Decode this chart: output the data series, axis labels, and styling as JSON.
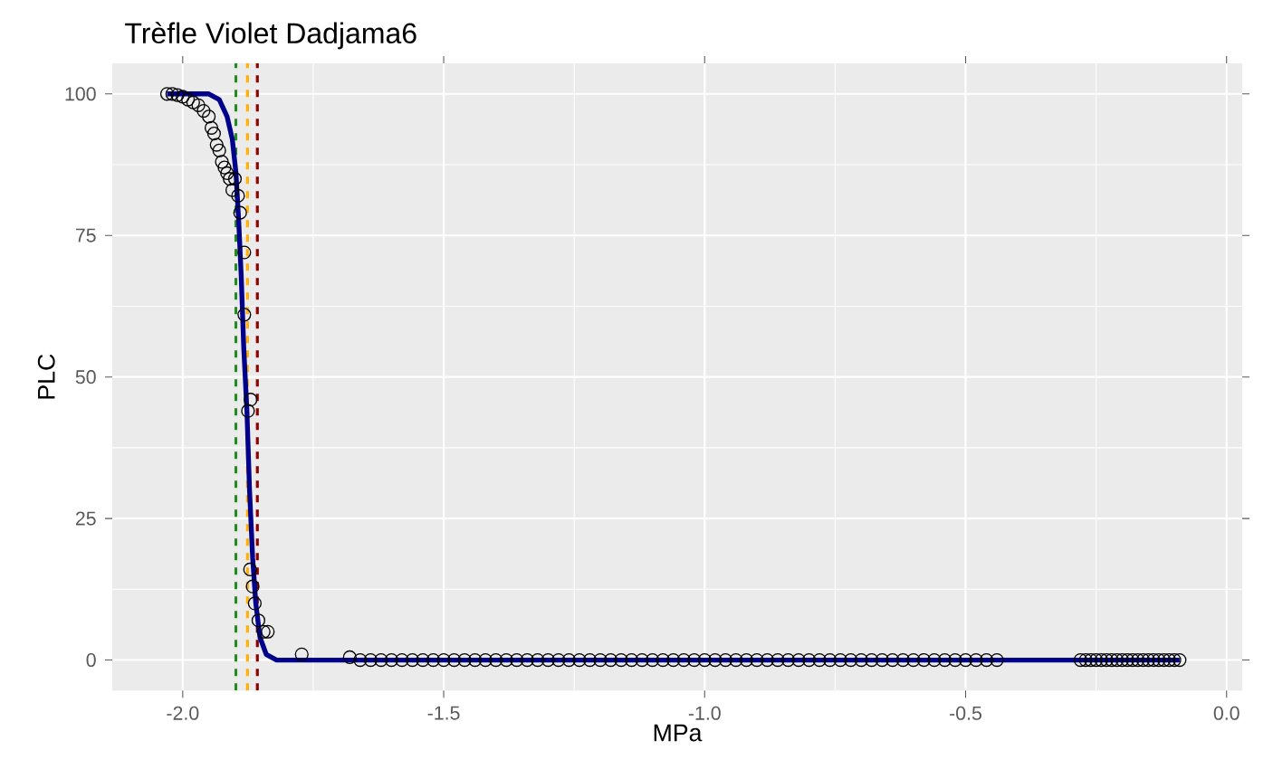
{
  "chart_data": {
    "type": "scatter",
    "title": "Trèfle Violet Dadjama6",
    "xlabel": "MPa",
    "ylabel": "PLC",
    "xlim": [
      -2.135,
      0.03
    ],
    "ylim": [
      -5.4,
      105.4
    ],
    "xticks": [
      {
        "value": -2,
        "label": "-2.0"
      },
      {
        "value": -1.5,
        "label": "-1.5"
      },
      {
        "value": -1,
        "label": "-1.0"
      },
      {
        "value": -0.5,
        "label": "-0.5"
      },
      {
        "value": 0,
        "label": "0.0"
      }
    ],
    "yticks": [
      0,
      25,
      50,
      75,
      100
    ],
    "grid": true,
    "ref_lines": [
      {
        "axis": "x",
        "value": -1.898,
        "color": "#228b22",
        "line_style": "dashed"
      },
      {
        "axis": "x",
        "value": -1.876,
        "color": "#ffb000",
        "line_style": "dashed"
      },
      {
        "axis": "x",
        "value": -1.857,
        "color": "#8b0000",
        "line_style": "dashed"
      }
    ],
    "series": [
      {
        "marker": "circle",
        "color": "#000000",
        "x": [
          -2.03,
          -2.02,
          -2.01,
          -2.0,
          -1.99,
          -1.98,
          -1.97,
          -1.96,
          -1.95,
          -1.945,
          -1.94,
          -1.935,
          -1.93,
          -1.925,
          -1.92,
          -1.915,
          -1.91,
          -1.905,
          -1.9,
          -1.894,
          -1.89,
          -1.882,
          -1.882,
          -1.87,
          -1.875,
          -1.871,
          -1.866,
          -1.862,
          -1.855,
          -1.845,
          -1.837,
          -1.772,
          -1.68,
          -1.66,
          -1.64,
          -1.62,
          -1.6,
          -1.58,
          -1.56,
          -1.54,
          -1.52,
          -1.5,
          -1.48,
          -1.46,
          -1.44,
          -1.42,
          -1.4,
          -1.38,
          -1.36,
          -1.34,
          -1.32,
          -1.3,
          -1.28,
          -1.26,
          -1.24,
          -1.22,
          -1.2,
          -1.18,
          -1.16,
          -1.14,
          -1.12,
          -1.1,
          -1.08,
          -1.06,
          -1.04,
          -1.02,
          -1,
          -0.98,
          -0.96,
          -0.94,
          -0.92,
          -0.9,
          -0.88,
          -0.86,
          -0.84,
          -0.82,
          -0.8,
          -0.78,
          -0.76,
          -0.74,
          -0.72,
          -0.7,
          -0.68,
          -0.66,
          -0.64,
          -0.62,
          -0.6,
          -0.58,
          -0.56,
          -0.54,
          -0.52,
          -0.5,
          -0.48,
          -0.46,
          -0.44,
          -0.28,
          -0.27,
          -0.26,
          -0.25,
          -0.24,
          -0.23,
          -0.22,
          -0.21,
          -0.2,
          -0.19,
          -0.18,
          -0.17,
          -0.16,
          -0.15,
          -0.14,
          -0.13,
          -0.12,
          -0.11,
          -0.1,
          -0.09
        ],
        "values": [
          100,
          100,
          99.8,
          99.5,
          99,
          98.5,
          98,
          97,
          96,
          94,
          93,
          91,
          90,
          88,
          87,
          86,
          85,
          83,
          85,
          82,
          79,
          72,
          61,
          46,
          44,
          16,
          13,
          10,
          7,
          5,
          5,
          1,
          0.5,
          0,
          0,
          0,
          0,
          0,
          0,
          0,
          0,
          0,
          0,
          0,
          0,
          0,
          0,
          0,
          0,
          0,
          0,
          0,
          0,
          0,
          0,
          0,
          0,
          0,
          0,
          0,
          0,
          0,
          0,
          0,
          0,
          0,
          0,
          0,
          0,
          0,
          0,
          0,
          0,
          0,
          0,
          0,
          0,
          0,
          0,
          0,
          0,
          0,
          0,
          0,
          0,
          0,
          0,
          0,
          0,
          0,
          0,
          0,
          0,
          0,
          0,
          0,
          0,
          0,
          0,
          0,
          0,
          0,
          0,
          0,
          0,
          0,
          0,
          0,
          0,
          0,
          0,
          0,
          0,
          0,
          0
        ]
      },
      {
        "type": "line",
        "color": "#00008b",
        "x": [
          -2.03,
          -1.95,
          -1.93,
          -1.915,
          -1.905,
          -1.898,
          -1.893,
          -1.888,
          -1.883,
          -1.877,
          -1.872,
          -1.866,
          -1.86,
          -1.852,
          -1.84,
          -1.82,
          -0.09
        ],
        "values": [
          100,
          100,
          99,
          96,
          92,
          86,
          78,
          68,
          55,
          44,
          30,
          18,
          10,
          4,
          1,
          0,
          0
        ]
      }
    ]
  }
}
